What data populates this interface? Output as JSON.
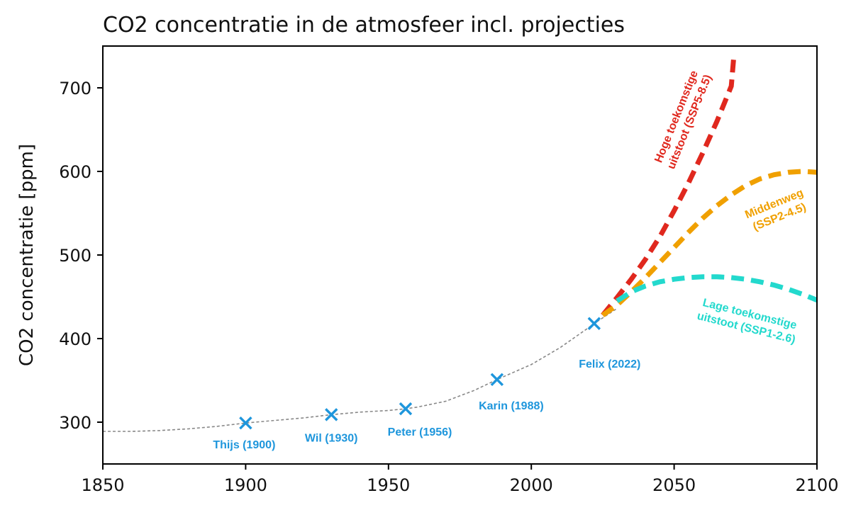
{
  "chart_data": {
    "type": "line",
    "title": "CO2 concentratie in de atmosfeer incl. projecties",
    "xlabel": "",
    "ylabel": "CO2 concentratie [ppm]",
    "xlim": [
      1850,
      2100
    ],
    "ylim": [
      250,
      750
    ],
    "x_ticks": [
      1850,
      1900,
      1950,
      2000,
      2050,
      2100
    ],
    "y_ticks": [
      300,
      400,
      500,
      600,
      700
    ],
    "grid": false,
    "historical": {
      "color": "#888888",
      "x": [
        1850,
        1860,
        1870,
        1880,
        1890,
        1900,
        1910,
        1920,
        1930,
        1940,
        1950,
        1956,
        1960,
        1970,
        1980,
        1988,
        1990,
        2000,
        2010,
        2020,
        2022,
        2030
      ],
      "y": [
        289,
        289,
        290,
        292,
        295,
        299,
        302,
        305,
        309,
        312,
        314,
        316,
        318,
        325,
        338,
        351,
        354,
        369,
        389,
        413,
        418,
        436
      ]
    },
    "markers": [
      {
        "label": "Thijs (1900)",
        "x": 1900,
        "y": 299
      },
      {
        "label": "Wil (1930)",
        "x": 1930,
        "y": 309
      },
      {
        "label": "Peter (1956)",
        "x": 1956,
        "y": 316
      },
      {
        "label": "Karin (1988)",
        "x": 1988,
        "y": 351
      },
      {
        "label": "Felix (2022)",
        "x": 2022,
        "y": 418
      }
    ],
    "marker_color": "#1e96dc",
    "series": [
      {
        "name_lines": [
          "Hoge toekomstige",
          "uitstoot (SSP5-8.5)"
        ],
        "color": "#e0281e",
        "x": [
          2025,
          2030,
          2035,
          2040,
          2045,
          2050,
          2055,
          2060,
          2065,
          2070,
          2071
        ],
        "y": [
          428,
          449,
          471,
          495,
          522,
          553,
          586,
          622,
          660,
          702,
          742
        ]
      },
      {
        "name_lines": [
          "Middenweg",
          "(SSP2-4.5)"
        ],
        "color": "#f0a000",
        "x": [
          2025,
          2030,
          2035,
          2040,
          2045,
          2050,
          2055,
          2060,
          2065,
          2070,
          2075,
          2080,
          2085,
          2090,
          2095,
          2100
        ],
        "y": [
          428,
          440,
          456,
          473,
          491,
          509,
          527,
          544,
          559,
          572,
          583,
          591,
          596,
          599,
          600,
          599
        ]
      },
      {
        "name_lines": [
          "Lage toekomstige",
          "uitstoot (SSP1-2.6)"
        ],
        "color": "#23d9cd",
        "x": [
          2030,
          2035,
          2040,
          2045,
          2050,
          2055,
          2060,
          2065,
          2070,
          2075,
          2080,
          2085,
          2090,
          2095,
          2100
        ],
        "y": [
          445,
          456,
          463,
          468,
          471,
          473,
          474,
          474,
          473,
          471,
          468,
          464,
          459,
          453,
          446
        ]
      }
    ]
  }
}
